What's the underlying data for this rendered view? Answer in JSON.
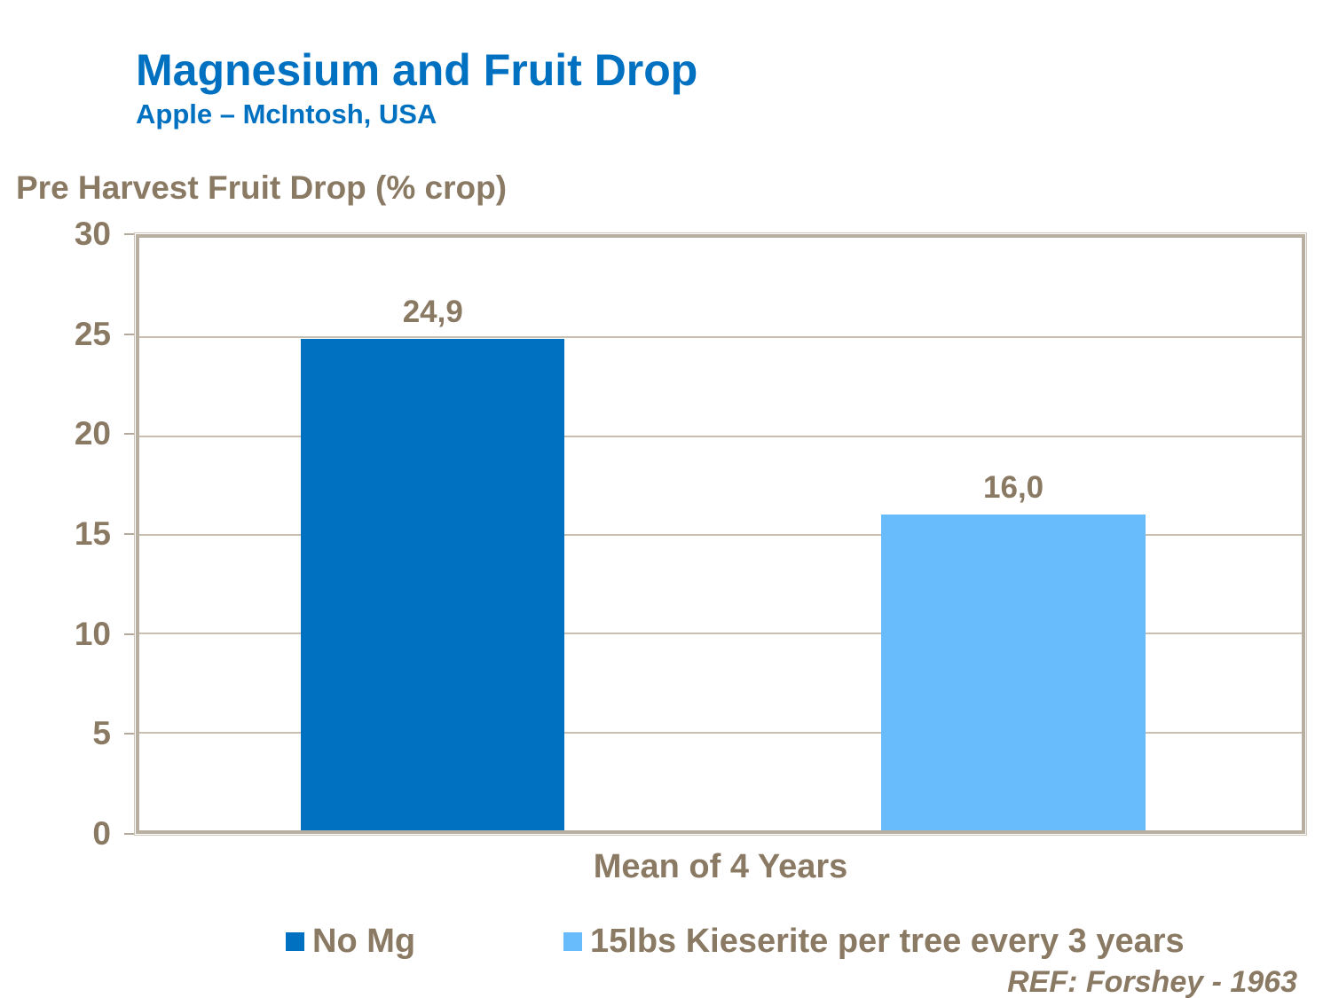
{
  "colors": {
    "title_blue": "#0070C0",
    "text_brown": "#8A7963",
    "frame_tan": "#B9AFA1",
    "gridline_tan": "#C9C0B2",
    "bar_dark_blue": "#0070C0",
    "bar_light_blue": "#69BCFB"
  },
  "chart_data": {
    "type": "bar",
    "title": "Magnesium and Fruit Drop",
    "subtitle": "Apple – McIntosh, USA",
    "ylabel": "Pre Harvest Fruit Drop (% crop)",
    "xlabel": "Mean of 4 Years",
    "categories": [
      "Mean of 4 Years"
    ],
    "series": [
      {
        "name": "No Mg",
        "values": [
          24.9
        ],
        "data_labels": [
          "24,9"
        ],
        "color": "#0070C0"
      },
      {
        "name": "15lbs Kieserite per tree every 3 years",
        "values": [
          16.0
        ],
        "data_labels": [
          "16,0"
        ],
        "color": "#69BCFB"
      }
    ],
    "ylim": [
      0,
      30
    ],
    "yticks": [
      30,
      25,
      20,
      15,
      10,
      5,
      0
    ],
    "ytick_labels": [
      "30",
      "25",
      "20",
      "15",
      "10",
      "5",
      "0"
    ],
    "grid": true,
    "legend_position": "bottom",
    "annotation": "REF: Forshey - 1963"
  }
}
